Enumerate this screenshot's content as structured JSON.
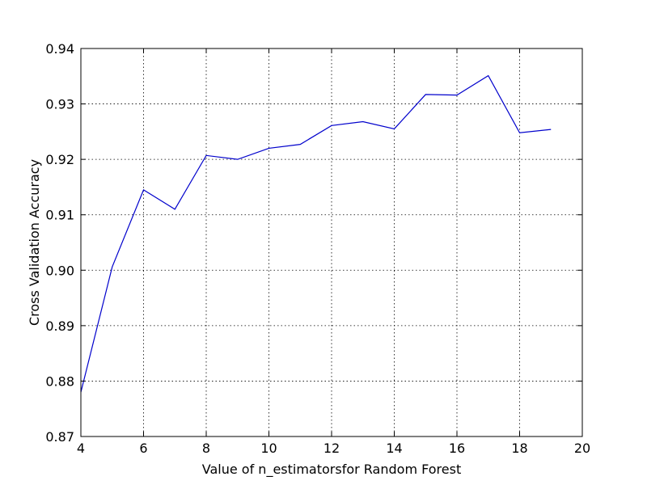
{
  "chart_data": {
    "type": "line",
    "title": "",
    "xlabel": "Value of n_estimatorsfor Random Forest",
    "ylabel": "Cross Validation Accuracy",
    "xlim": [
      4,
      20
    ],
    "ylim": [
      0.87,
      0.94
    ],
    "grid": true,
    "x_ticks": [
      4,
      6,
      8,
      10,
      12,
      14,
      16,
      18,
      20
    ],
    "x_tick_labels": [
      "4",
      "6",
      "8",
      "10",
      "12",
      "14",
      "16",
      "18",
      "20"
    ],
    "y_ticks": [
      0.87,
      0.88,
      0.89,
      0.9,
      0.91,
      0.92,
      0.93,
      0.94
    ],
    "y_tick_labels": [
      "0.87",
      "0.88",
      "0.89",
      "0.90",
      "0.91",
      "0.92",
      "0.93",
      "0.94"
    ],
    "series": [
      {
        "color": "#0000cc",
        "x": [
          4,
          5,
          6,
          7,
          8,
          9,
          10,
          11,
          12,
          13,
          14,
          15,
          16,
          17,
          18,
          19
        ],
        "y": [
          0.878,
          0.9006,
          0.9145,
          0.911,
          0.9207,
          0.92,
          0.922,
          0.9227,
          0.9261,
          0.9268,
          0.9255,
          0.9317,
          0.9316,
          0.9351,
          0.9248,
          0.9254
        ]
      }
    ]
  }
}
